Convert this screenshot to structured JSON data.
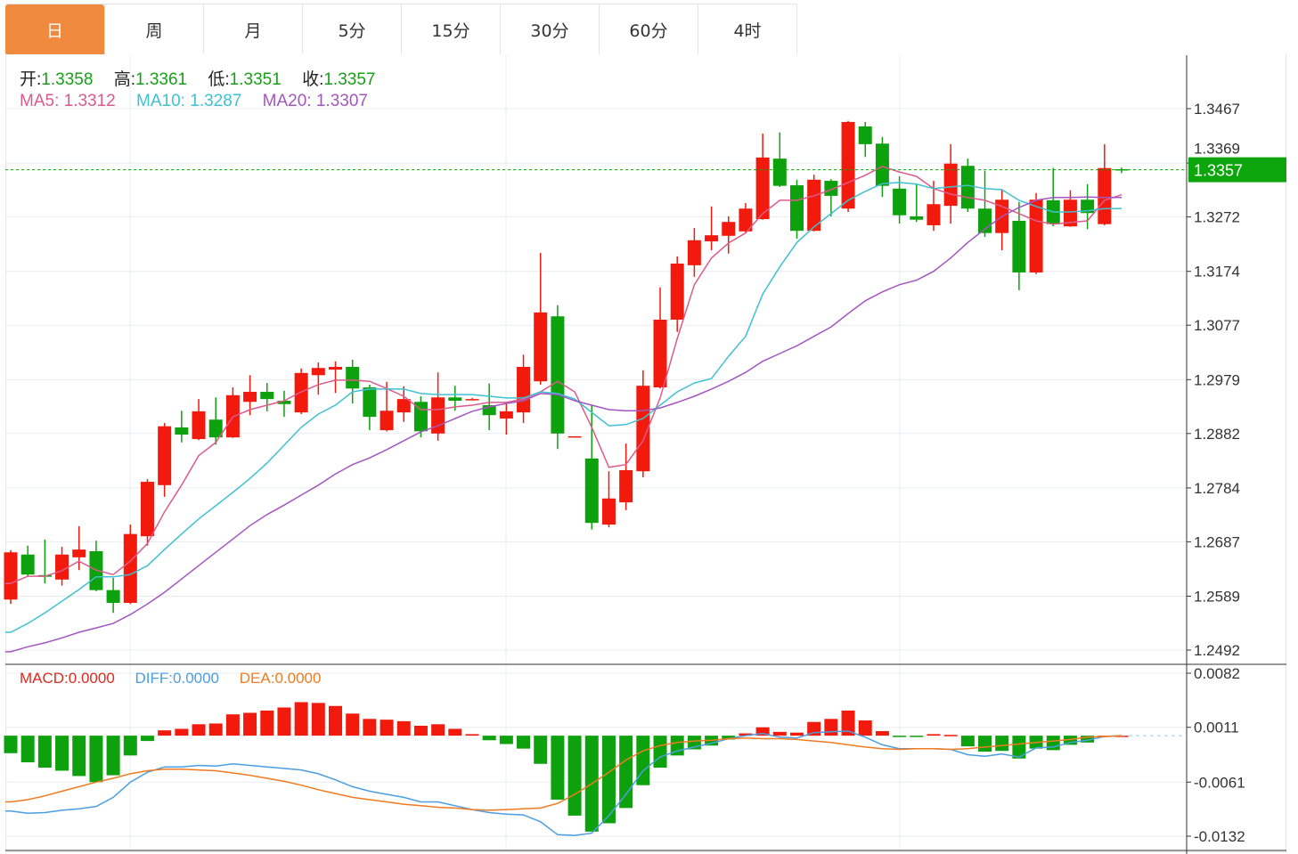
{
  "tabs": [
    {
      "label": "日",
      "active": true
    },
    {
      "label": "周"
    },
    {
      "label": "月"
    },
    {
      "label": "5分"
    },
    {
      "label": "15分"
    },
    {
      "label": "30分"
    },
    {
      "label": "60分"
    },
    {
      "label": "4时"
    }
  ],
  "ohlc_legend": {
    "open_label": "开:",
    "open": "1.3358",
    "high_label": "高:",
    "high": "1.3361",
    "low_label": "低:",
    "low": "1.3351",
    "close_label": "收:",
    "close": "1.3357"
  },
  "ma_legend": {
    "ma5_label": "MA5:",
    "ma5": "1.3312",
    "ma10_label": "MA10:",
    "ma10": "1.3287",
    "ma20_label": "MA20:",
    "ma20": "1.3307"
  },
  "macd_legend": {
    "macd_label": "MACD:",
    "macd": "0.0000",
    "diff_label": "DIFF:",
    "diff": "0.0000",
    "dea_label": "DEA:",
    "dea": "0.0000"
  },
  "colors": {
    "up": "#f21a0c",
    "down": "#0ea10e",
    "accent_tab": "#f08a3e",
    "ma5": "#dd5a8c",
    "ma10": "#3fc1d2",
    "ma20": "#a456c0",
    "diff": "#4b9ee0",
    "dea": "#f07a20",
    "current_price": "#0ca60c"
  },
  "chart_data": [
    {
      "type": "candlestick",
      "title": "",
      "current_price": "1.3357",
      "yticks": [
        "1.3467",
        "1.3369",
        "1.3272",
        "1.3174",
        "1.3077",
        "1.2979",
        "1.2882",
        "1.2784",
        "1.2687",
        "1.2589",
        "1.2492"
      ],
      "ylim": [
        1.2492,
        1.3467
      ],
      "grid": true,
      "candles": [
        [
          1.2583,
          1.2672,
          1.2575,
          1.2668
        ],
        [
          1.2664,
          1.268,
          1.2624,
          1.2628
        ],
        [
          1.2627,
          1.2691,
          1.2612,
          1.2624
        ],
        [
          1.2619,
          1.2678,
          1.2608,
          1.2664
        ],
        [
          1.2659,
          1.2715,
          1.2636,
          1.2673
        ],
        [
          1.267,
          1.2689,
          1.2598,
          1.26
        ],
        [
          1.26,
          1.2622,
          1.2559,
          1.2577
        ],
        [
          1.2577,
          1.2718,
          1.2575,
          1.2701
        ],
        [
          1.2697,
          1.28,
          1.268,
          1.2795
        ],
        [
          1.2789,
          1.2901,
          1.2768,
          1.2895
        ],
        [
          1.2893,
          1.2923,
          1.2866,
          1.288
        ],
        [
          1.2872,
          1.2944,
          1.287,
          1.2922
        ],
        [
          1.2907,
          1.2947,
          1.2862,
          1.2875
        ],
        [
          1.2875,
          1.2965,
          1.2874,
          1.2951
        ],
        [
          1.2939,
          1.2987,
          1.2915,
          1.2957
        ],
        [
          1.2957,
          1.2973,
          1.2922,
          1.2944
        ],
        [
          1.2941,
          1.2959,
          1.2912,
          1.2935
        ],
        [
          1.292,
          1.2999,
          1.2917,
          1.2991
        ],
        [
          1.2987,
          1.301,
          1.2952,
          1.3
        ],
        [
          1.2997,
          1.3012,
          1.2955,
          1.3002
        ],
        [
          1.3002,
          1.3015,
          1.2936,
          1.2963
        ],
        [
          1.2965,
          1.297,
          1.2888,
          1.2912
        ],
        [
          1.2888,
          1.2975,
          1.2886,
          1.2923
        ],
        [
          1.292,
          1.2967,
          1.2903,
          1.2944
        ],
        [
          1.2939,
          1.2949,
          1.2875,
          1.2886
        ],
        [
          1.2882,
          1.2992,
          1.2869,
          1.2947
        ],
        [
          1.2947,
          1.2968,
          1.2923,
          1.2941
        ],
        [
          1.2943,
          1.2946,
          1.2943,
          1.2944
        ],
        [
          1.2933,
          1.2972,
          1.2888,
          1.2915
        ],
        [
          1.2909,
          1.2938,
          1.288,
          1.2922
        ],
        [
          1.292,
          1.3024,
          1.2901,
          1.3002
        ],
        [
          1.2976,
          1.3207,
          1.297,
          1.31
        ],
        [
          1.3093,
          1.3113,
          1.2854,
          1.2882
        ],
        [
          1.2877,
          1.2877,
          1.2877,
          1.2877
        ],
        [
          1.2837,
          1.2933,
          1.2709,
          1.2721
        ],
        [
          1.2718,
          1.2814,
          1.2713,
          1.2765
        ],
        [
          1.2758,
          1.2864,
          1.2744,
          1.2816
        ],
        [
          1.2814,
          1.2996,
          1.2803,
          1.2968
        ],
        [
          1.2965,
          1.3145,
          1.2963,
          1.3087
        ],
        [
          1.3087,
          1.3201,
          1.3065,
          1.3188
        ],
        [
          1.3185,
          1.3252,
          1.3164,
          1.323
        ],
        [
          1.3228,
          1.3291,
          1.3212,
          1.3239
        ],
        [
          1.3238,
          1.3273,
          1.3206,
          1.3263
        ],
        [
          1.3246,
          1.3297,
          1.3244,
          1.3287
        ],
        [
          1.3268,
          1.3422,
          1.3267,
          1.3379
        ],
        [
          1.3377,
          1.3424,
          1.3326,
          1.3328
        ],
        [
          1.3329,
          1.3339,
          1.3233,
          1.3247
        ],
        [
          1.3247,
          1.3348,
          1.3246,
          1.3339
        ],
        [
          1.3337,
          1.334,
          1.3273,
          1.331
        ],
        [
          1.3287,
          1.3445,
          1.3281,
          1.3443
        ],
        [
          1.3435,
          1.3443,
          1.338,
          1.3403
        ],
        [
          1.3404,
          1.3416,
          1.3308,
          1.3328
        ],
        [
          1.3323,
          1.3345,
          1.326,
          1.3275
        ],
        [
          1.3273,
          1.3331,
          1.3263,
          1.3267
        ],
        [
          1.3257,
          1.3337,
          1.3247,
          1.3295
        ],
        [
          1.3292,
          1.3403,
          1.326,
          1.3368
        ],
        [
          1.3364,
          1.3377,
          1.3281,
          1.3287
        ],
        [
          1.3287,
          1.3355,
          1.3236,
          1.3243
        ],
        [
          1.3243,
          1.3321,
          1.3212,
          1.3303
        ],
        [
          1.3265,
          1.3299,
          1.314,
          1.3172
        ],
        [
          1.3172,
          1.3315,
          1.3169,
          1.3303
        ],
        [
          1.3302,
          1.336,
          1.3255,
          1.3259
        ],
        [
          1.3255,
          1.332,
          1.3254,
          1.3303
        ],
        [
          1.3303,
          1.3331,
          1.325,
          1.3279
        ],
        [
          1.3259,
          1.3403,
          1.3257,
          1.336
        ],
        [
          1.3358,
          1.3361,
          1.3351,
          1.3357
        ]
      ],
      "series": [
        {
          "name": "MA5",
          "values": [
            1.2612,
            1.2625,
            1.2625,
            1.2635,
            1.2652,
            1.2636,
            1.2628,
            1.2652,
            1.2684,
            1.2741,
            1.2789,
            1.2842,
            1.2866,
            1.2912,
            1.2925,
            1.2933,
            1.2941,
            1.2957,
            1.297,
            1.2978,
            1.2978,
            1.2976,
            1.2963,
            1.2949,
            1.2925,
            1.2925,
            1.293,
            1.2933,
            1.2938,
            1.2938,
            1.2944,
            1.2957,
            1.2976,
            1.2957,
            1.2893,
            1.2821,
            1.2826,
            1.2869,
            1.2946,
            1.3053,
            1.315,
            1.3198,
            1.3225,
            1.3243,
            1.3278,
            1.3302,
            1.3302,
            1.331,
            1.3321,
            1.3334,
            1.3347,
            1.3363,
            1.3353,
            1.3345,
            1.3323,
            1.3313,
            1.3307,
            1.3302,
            1.3291,
            1.3278,
            1.3265,
            1.3259,
            1.3262,
            1.3265,
            1.3302,
            1.3312
          ]
        },
        {
          "name": "MA10",
          "values": [
            1.2524,
            1.254,
            1.2559,
            1.258,
            1.2601,
            1.2624,
            1.2624,
            1.2628,
            1.2644,
            1.2673,
            1.2701,
            1.2728,
            1.2752,
            1.2776,
            1.2801,
            1.2829,
            1.2861,
            1.2893,
            1.2917,
            1.2933,
            1.2957,
            1.2962,
            1.2962,
            1.2962,
            1.2954,
            1.2952,
            1.2952,
            1.2952,
            1.2949,
            1.2946,
            1.2946,
            1.2957,
            1.2954,
            1.2944,
            1.292,
            1.2896,
            1.2898,
            1.2909,
            1.2933,
            1.2957,
            1.2973,
            1.2981,
            1.3021,
            1.3057,
            1.3133,
            1.3182,
            1.3226,
            1.3254,
            1.3278,
            1.3302,
            1.3318,
            1.3332,
            1.3334,
            1.3331,
            1.3323,
            1.3326,
            1.3329,
            1.3323,
            1.3321,
            1.3302,
            1.3291,
            1.3281,
            1.3281,
            1.3283,
            1.3287,
            1.3287
          ]
        },
        {
          "name": "MA20",
          "values": [
            1.2489,
            1.2498,
            1.2505,
            1.2514,
            1.2524,
            1.2532,
            1.254,
            1.2556,
            1.2575,
            1.2596,
            1.262,
            1.2644,
            1.2668,
            1.2692,
            1.2716,
            1.2736,
            1.2753,
            1.2771,
            1.2789,
            1.2809,
            1.2826,
            1.2838,
            1.2853,
            1.2869,
            1.2885,
            1.2896,
            1.2909,
            1.2922,
            1.293,
            1.2936,
            1.2941,
            1.2954,
            1.2952,
            1.2941,
            1.2933,
            1.2925,
            1.2923,
            1.2923,
            1.2928,
            1.2938,
            1.2949,
            1.2962,
            1.2976,
            1.2992,
            1.3012,
            1.3026,
            1.304,
            1.3057,
            1.3074,
            1.3098,
            1.3121,
            1.3137,
            1.315,
            1.3158,
            1.3174,
            1.3198,
            1.3226,
            1.325,
            1.3273,
            1.3289,
            1.3302,
            1.3307,
            1.3307,
            1.3308,
            1.3307,
            1.3307
          ]
        }
      ]
    },
    {
      "type": "bar+line",
      "title": "",
      "yticks": [
        "0.0082",
        "0.0011",
        "-0.0061",
        "-0.0132"
      ],
      "ylim": [
        -0.0132,
        0.0082
      ],
      "grid": true,
      "macd": [
        -0.0023,
        -0.0035,
        -0.0042,
        -0.0046,
        -0.0053,
        -0.0061,
        -0.0052,
        -0.0026,
        -0.0007,
        0.0007,
        0.0009,
        0.0015,
        0.0016,
        0.0028,
        0.003,
        0.0033,
        0.0037,
        0.0044,
        0.0043,
        0.0039,
        0.0029,
        0.0022,
        0.0021,
        0.0019,
        0.0013,
        0.0015,
        0.0009,
        0.0002,
        -0.0006,
        -0.0011,
        -0.0017,
        -0.0037,
        -0.0084,
        -0.0105,
        -0.0126,
        -0.0115,
        -0.0095,
        -0.0065,
        -0.0042,
        -0.0026,
        -0.0018,
        -0.0013,
        -0.0005,
        0.0003,
        0.0011,
        0.0005,
        0.0004,
        0.0018,
        0.0022,
        0.0033,
        0.002,
        0.0006,
        -0.0001,
        -0.0001,
        0.0002,
        0.0001,
        -0.0014,
        -0.0021,
        -0.002,
        -0.003,
        -0.0017,
        -0.0019,
        -0.0012,
        -0.0009,
        0.0,
        0.0
      ],
      "series": [
        {
          "name": "DIFF",
          "values": [
            -0.0099,
            -0.0102,
            -0.0101,
            -0.0098,
            -0.0096,
            -0.0093,
            -0.0081,
            -0.0061,
            -0.0048,
            -0.0041,
            -0.0041,
            -0.0039,
            -0.004,
            -0.0037,
            -0.0039,
            -0.0041,
            -0.0043,
            -0.0045,
            -0.005,
            -0.0058,
            -0.0067,
            -0.0073,
            -0.0077,
            -0.0081,
            -0.0087,
            -0.0087,
            -0.0092,
            -0.0097,
            -0.0101,
            -0.0103,
            -0.0104,
            -0.0113,
            -0.013,
            -0.0131,
            -0.0128,
            -0.0105,
            -0.0077,
            -0.0046,
            -0.0028,
            -0.002,
            -0.0015,
            -0.001,
            -0.0004,
            0.0,
            0.0003,
            -0.0002,
            -0.0003,
            0.0004,
            0.0005,
            0.0006,
            -0.0002,
            -0.0012,
            -0.0017,
            -0.0017,
            -0.0017,
            -0.0018,
            -0.0025,
            -0.0027,
            -0.0024,
            -0.0028,
            -0.0016,
            -0.0015,
            -0.0009,
            -0.0006,
            -0.0001,
            0.0
          ]
        },
        {
          "name": "DEA",
          "values": [
            -0.0087,
            -0.0084,
            -0.0079,
            -0.0073,
            -0.0067,
            -0.0061,
            -0.0056,
            -0.005,
            -0.0046,
            -0.0044,
            -0.0044,
            -0.0045,
            -0.0046,
            -0.0049,
            -0.0052,
            -0.0056,
            -0.006,
            -0.0065,
            -0.0071,
            -0.0076,
            -0.0081,
            -0.0084,
            -0.0087,
            -0.009,
            -0.0092,
            -0.0094,
            -0.0095,
            -0.0097,
            -0.0098,
            -0.0097,
            -0.0096,
            -0.0095,
            -0.0089,
            -0.0077,
            -0.0063,
            -0.0048,
            -0.0032,
            -0.002,
            -0.0013,
            -0.0009,
            -0.0007,
            -0.0006,
            -0.0004,
            -0.0003,
            -0.0004,
            -0.0004,
            -0.0005,
            -0.0007,
            -0.0009,
            -0.0012,
            -0.0015,
            -0.0017,
            -0.0018,
            -0.0017,
            -0.0017,
            -0.0018,
            -0.0017,
            -0.0015,
            -0.0013,
            -0.0011,
            -0.0009,
            -0.0007,
            -0.0005,
            -0.0002,
            -0.0001,
            0.0
          ]
        }
      ]
    }
  ]
}
